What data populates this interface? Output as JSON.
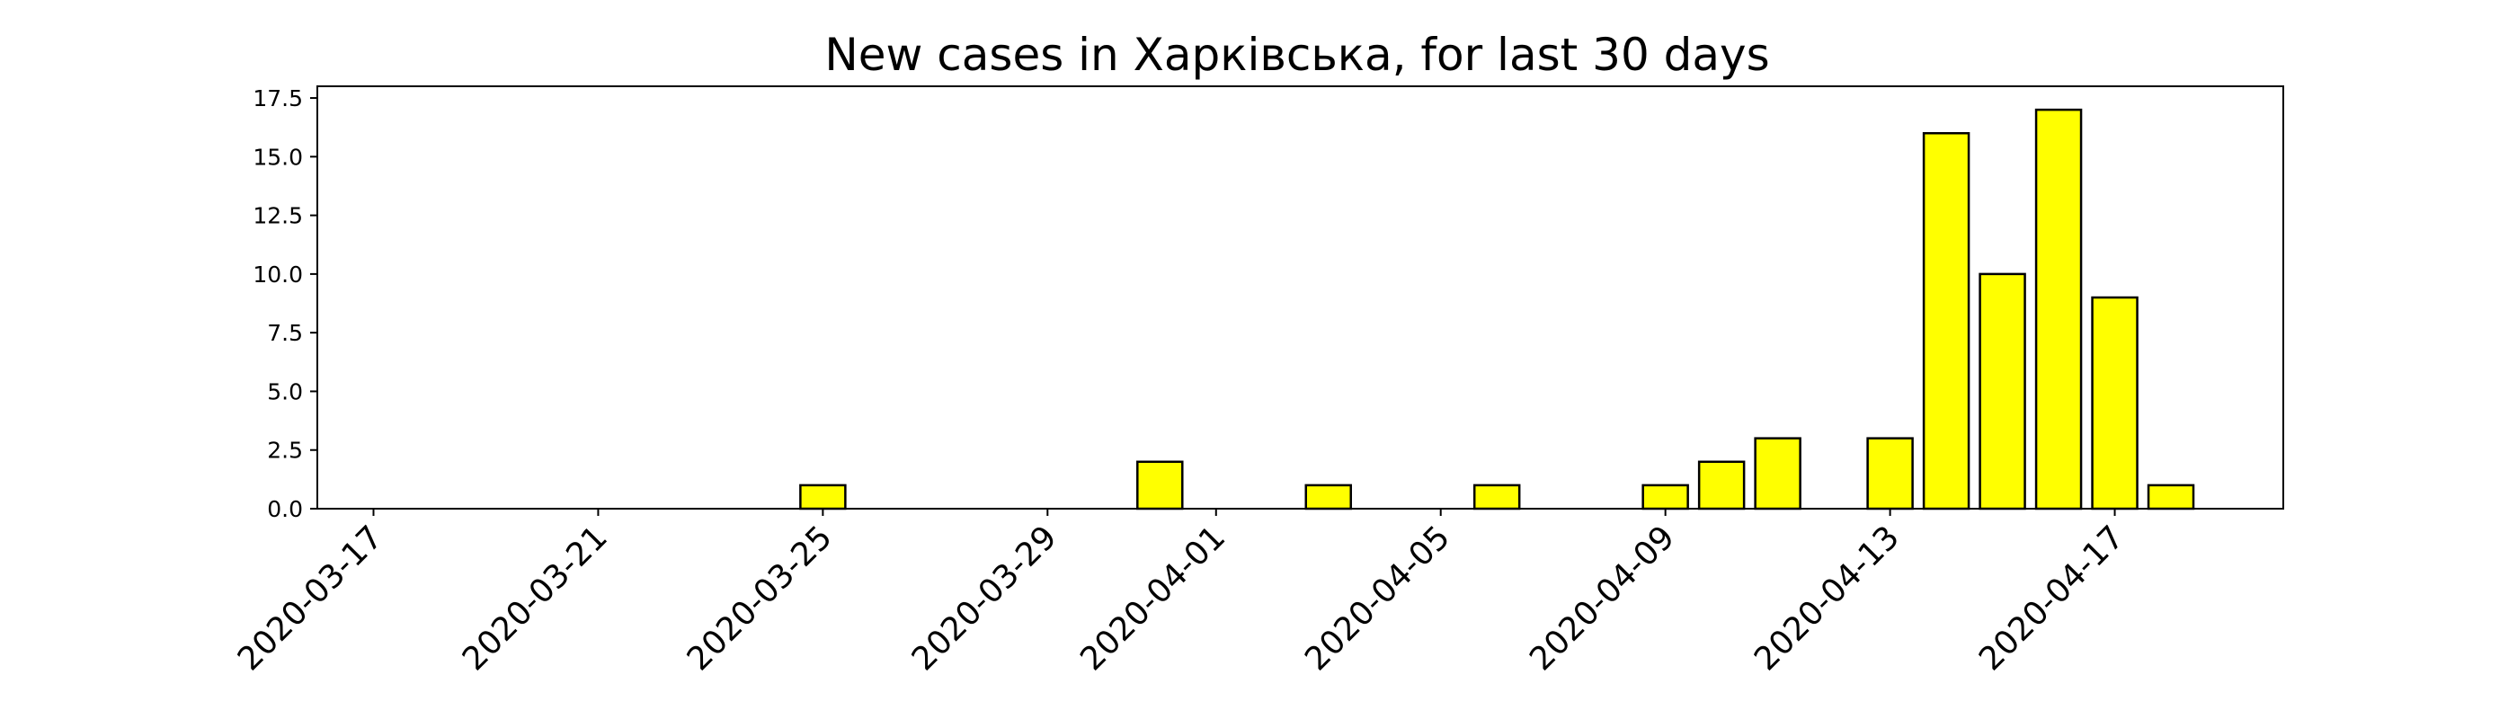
{
  "chart_data": {
    "type": "bar",
    "title": "New cases in Харківська, for last 30 days",
    "xlabel": "",
    "ylabel": "",
    "ylim": [
      0,
      18
    ],
    "y_ticks": [
      0.0,
      2.5,
      5.0,
      7.5,
      10.0,
      12.5,
      15.0,
      17.5
    ],
    "y_tick_labels": [
      "0.0",
      "2.5",
      "5.0",
      "7.5",
      "10.0",
      "12.5",
      "15.0",
      "17.5"
    ],
    "x_range": [
      "2020-03-16",
      "2020-04-20"
    ],
    "x_tick_labels": [
      "2020-03-17",
      "2020-03-21",
      "2020-03-25",
      "2020-03-29",
      "2020-04-01",
      "2020-04-05",
      "2020-04-09",
      "2020-04-13",
      "2020-04-17"
    ],
    "bar_color": "#ffff00",
    "edge_color": "#000000",
    "grid": false,
    "legend": "none",
    "dates": [
      "2020-03-17",
      "2020-03-18",
      "2020-03-19",
      "2020-03-20",
      "2020-03-21",
      "2020-03-22",
      "2020-03-23",
      "2020-03-24",
      "2020-03-25",
      "2020-03-26",
      "2020-03-27",
      "2020-03-28",
      "2020-03-29",
      "2020-03-30",
      "2020-03-31",
      "2020-04-01",
      "2020-04-02",
      "2020-04-03",
      "2020-04-04",
      "2020-04-05",
      "2020-04-06",
      "2020-04-07",
      "2020-04-08",
      "2020-04-09",
      "2020-04-10",
      "2020-04-11",
      "2020-04-12",
      "2020-04-13",
      "2020-04-14",
      "2020-04-15",
      "2020-04-16",
      "2020-04-17",
      "2020-04-18"
    ],
    "values": [
      0,
      0,
      0,
      0,
      0,
      0,
      0,
      0,
      1,
      0,
      0,
      0,
      0,
      0,
      2,
      0,
      0,
      1,
      0,
      0,
      1,
      0,
      0,
      1,
      2,
      3,
      0,
      3,
      16,
      10,
      17,
      9,
      1
    ]
  }
}
